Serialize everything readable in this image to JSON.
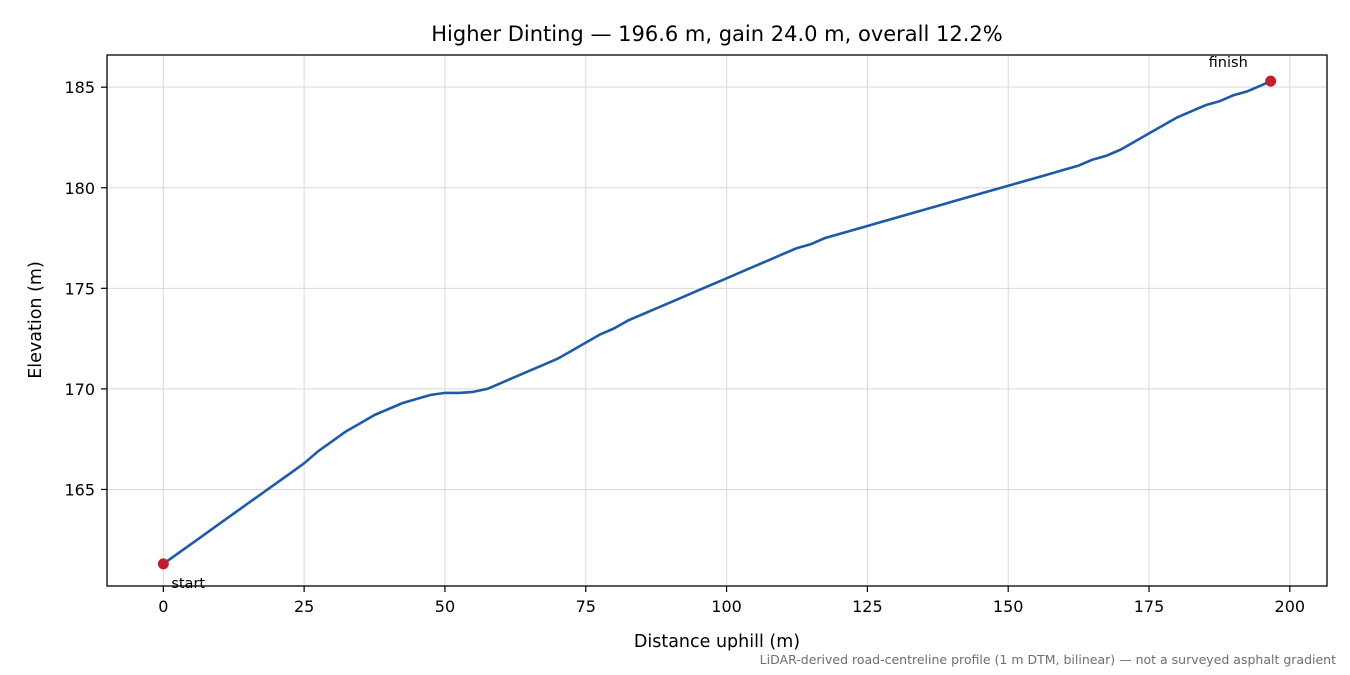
{
  "chart_data": {
    "type": "line",
    "title": "Higher Dinting — 196.6 m, gain 24.0 m, overall 12.2%",
    "xlabel": "Distance uphill (m)",
    "ylabel": "Elevation (m)",
    "xlim": [
      -10,
      206.6
    ],
    "ylim": [
      160.2,
      186.6
    ],
    "xticks": [
      0,
      25,
      50,
      75,
      100,
      125,
      150,
      175,
      200
    ],
    "yticks": [
      165,
      170,
      175,
      180,
      185
    ],
    "grid": true,
    "line_color": "#1f5aa6",
    "marker_color": "#c41e2e",
    "series": [
      {
        "x": [
          0,
          2.5,
          5,
          7.5,
          10,
          12.5,
          15,
          17.5,
          20,
          22.5,
          25,
          27.5,
          30,
          32.5,
          35,
          37.5,
          40,
          42.5,
          45,
          47.5,
          50,
          52.5,
          55,
          57.5,
          60,
          62.5,
          65,
          67.5,
          70,
          72.5,
          75,
          77.5,
          80,
          82.5,
          85,
          87.5,
          90,
          92.5,
          95,
          97.5,
          100,
          102.5,
          105,
          107.5,
          110,
          112.5,
          115,
          117.5,
          120,
          122.5,
          125,
          127.5,
          130,
          132.5,
          135,
          137.5,
          140,
          142.5,
          145,
          147.5,
          150,
          152.5,
          155,
          157.5,
          160,
          162.5,
          165,
          167.5,
          170,
          172.5,
          175,
          177.5,
          180,
          182.5,
          185,
          187.5,
          190,
          192.5,
          195,
          196.6
        ],
        "y": [
          161.3,
          161.8,
          162.3,
          162.8,
          163.3,
          163.8,
          164.3,
          164.8,
          165.3,
          165.8,
          166.3,
          166.9,
          167.4,
          167.9,
          168.3,
          168.7,
          169.0,
          169.3,
          169.5,
          169.7,
          169.8,
          169.8,
          169.85,
          170.0,
          170.3,
          170.6,
          170.9,
          171.2,
          171.5,
          171.9,
          172.3,
          172.7,
          173.0,
          173.4,
          173.7,
          174.0,
          174.3,
          174.6,
          174.9,
          175.2,
          175.5,
          175.8,
          176.1,
          176.4,
          176.7,
          177.0,
          177.2,
          177.5,
          177.7,
          177.9,
          178.1,
          178.3,
          178.5,
          178.7,
          178.9,
          179.1,
          179.3,
          179.5,
          179.7,
          179.9,
          180.1,
          180.3,
          180.5,
          180.7,
          180.9,
          181.1,
          181.4,
          181.6,
          181.9,
          182.3,
          182.7,
          183.1,
          183.5,
          183.8,
          184.1,
          184.3,
          184.6,
          184.8,
          185.1,
          185.3
        ]
      }
    ],
    "annotations": [
      {
        "label": "start",
        "x": 0,
        "y": 161.3
      },
      {
        "label": "finish",
        "x": 196.6,
        "y": 185.3
      }
    ],
    "footnote": "LiDAR-derived road-centreline profile (1 m DTM, bilinear) — not a surveyed asphalt gradient"
  }
}
